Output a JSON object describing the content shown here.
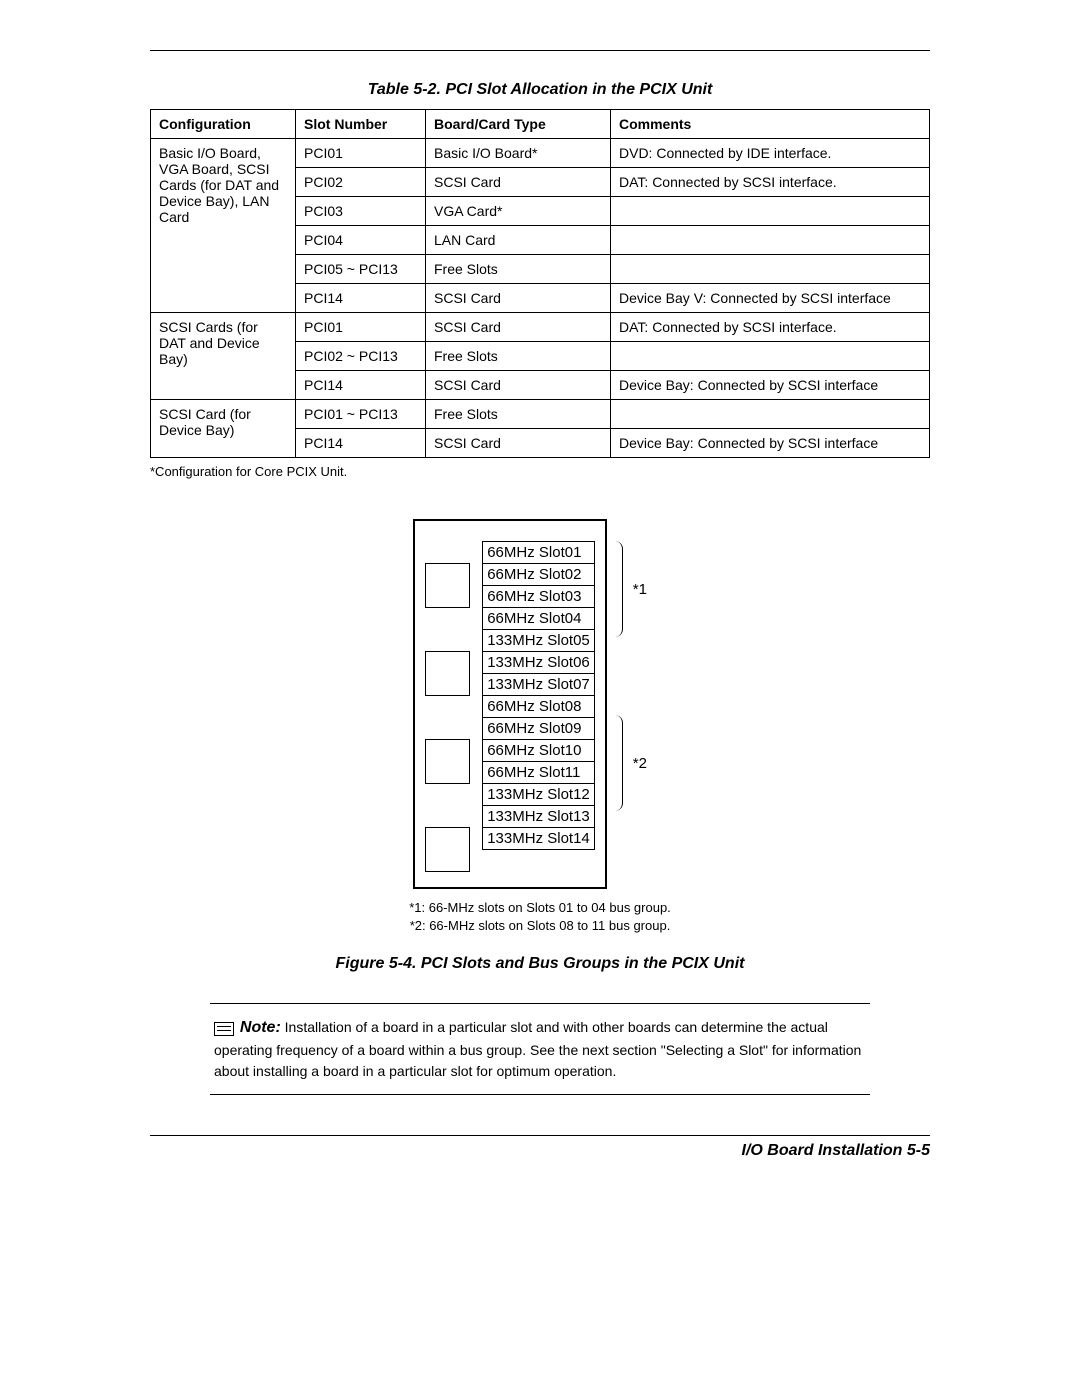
{
  "table": {
    "title": "Table 5-2.  PCI Slot Allocation in the PCIX Unit",
    "headers": [
      "Configuration",
      "Slot Number",
      "Board/Card Type",
      "Comments"
    ],
    "groups": [
      {
        "config": "Basic I/O Board, VGA Board, SCSI Cards (for DAT and Device Bay), LAN Card",
        "rows": [
          {
            "slot": "PCI01",
            "card": "Basic I/O Board*",
            "comment": "DVD: Connected by IDE interface."
          },
          {
            "slot": "PCI02",
            "card": "SCSI Card",
            "comment": "DAT: Connected by SCSI interface."
          },
          {
            "slot": "PCI03",
            "card": "VGA Card*",
            "comment": ""
          },
          {
            "slot": "PCI04",
            "card": "LAN Card",
            "comment": ""
          },
          {
            "slot": "PCI05 ~ PCI13",
            "card": "Free Slots",
            "comment": ""
          },
          {
            "slot": "PCI14",
            "card": "SCSI Card",
            "comment": "Device Bay V: Connected by SCSI interface"
          }
        ]
      },
      {
        "config": "SCSI Cards (for DAT and Device Bay)",
        "rows": [
          {
            "slot": "PCI01",
            "card": "SCSI Card",
            "comment": "DAT: Connected by SCSI interface."
          },
          {
            "slot": "PCI02 ~ PCI13",
            "card": "Free Slots",
            "comment": ""
          },
          {
            "slot": "PCI14",
            "card": "SCSI Card",
            "comment": "Device Bay: Connected by SCSI interface"
          }
        ]
      },
      {
        "config": "SCSI Card (for Device Bay)",
        "rows": [
          {
            "slot": "PCI01 ~ PCI13",
            "card": "Free Slots",
            "comment": ""
          },
          {
            "slot": "PCI14",
            "card": "SCSI Card",
            "comment": "Device Bay: Connected by SCSI interface"
          }
        ]
      }
    ],
    "footnote": "*Configuration for Core PCIX Unit."
  },
  "diagram": {
    "slots": [
      "66MHz Slot01",
      "66MHz Slot02",
      "66MHz Slot03",
      "66MHz Slot04",
      "133MHz Slot05",
      "133MHz Slot06",
      "133MHz Slot07",
      "66MHz Slot08",
      "66MHz Slot09",
      "66MHz Slot10",
      "66MHz Slot11",
      "133MHz Slot12",
      "133MHz Slot13",
      "133MHz Slot14"
    ],
    "bracket1": "*1",
    "bracket2": "*2",
    "footnote1": "*1:  66-MHz slots on Slots 01 to 04 bus group.",
    "footnote2": "*2:  66-MHz slots on Slots 08 to 11 bus group."
  },
  "figure_title": "Figure 5-4.  PCI Slots and Bus Groups in the PCIX Unit",
  "note": {
    "label": "Note:",
    "text": "Installation of a board in a particular slot and with other boards can determine the actual operating frequency of a board within a bus group. See the next section \"Selecting a Slot\" for information about installing a board in a particular slot for optimum operation."
  },
  "footer": "I/O Board Installation   5-5"
}
